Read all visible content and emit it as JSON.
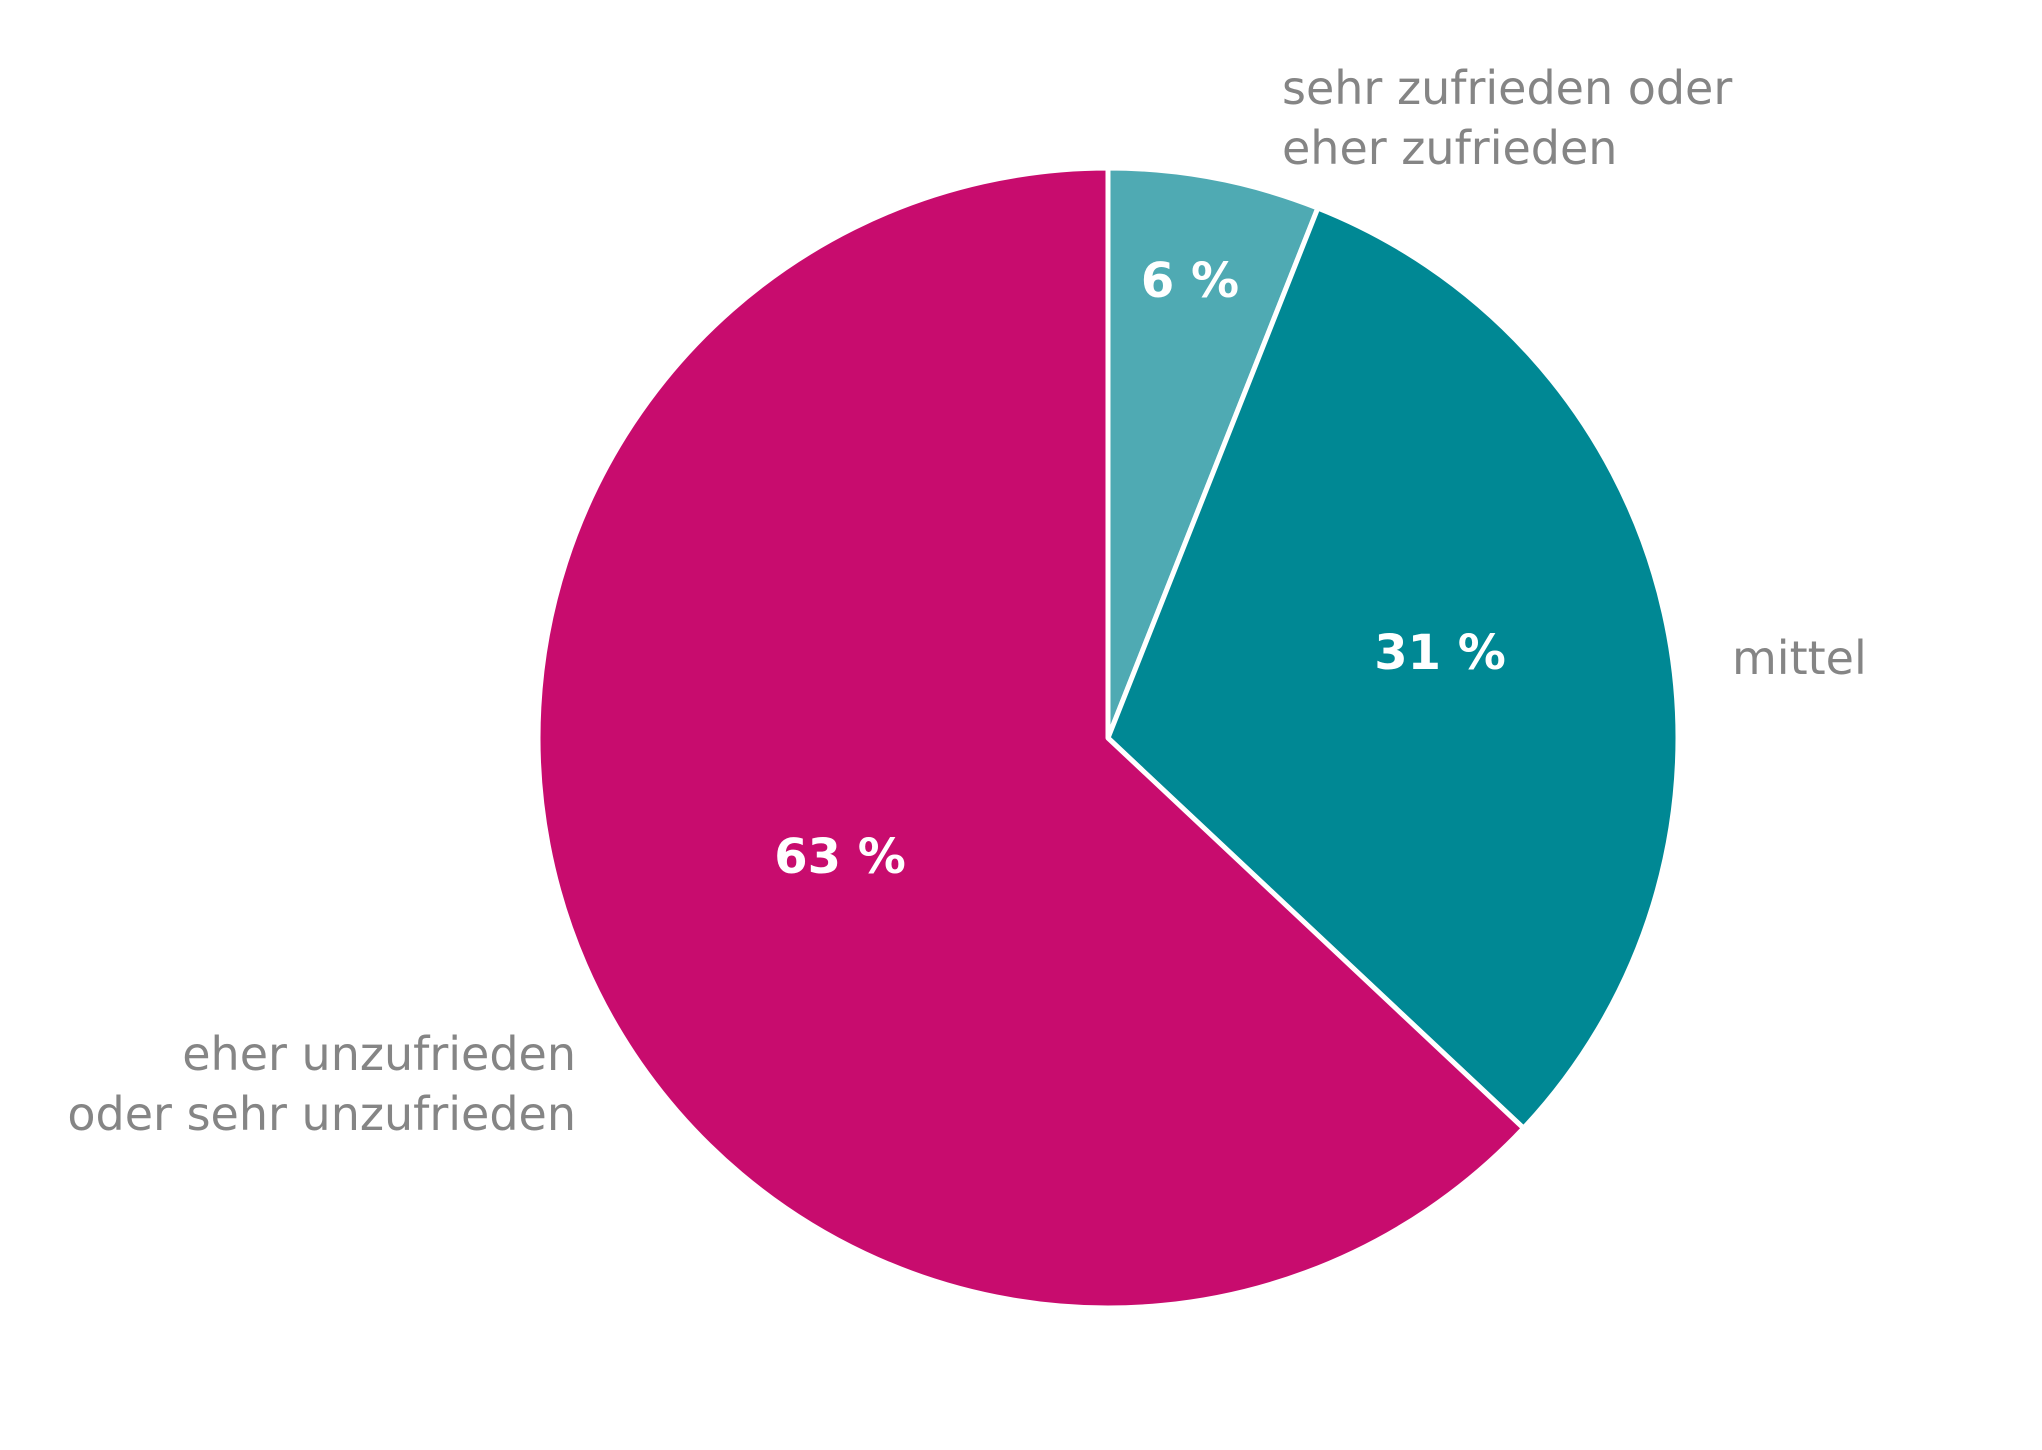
{
  "chart_data": {
    "type": "pie",
    "title": "",
    "start_angle_deg": 0,
    "direction": "clockwise",
    "slice_border_color": "#ffffff",
    "slices": [
      {
        "value": 6,
        "value_label": "6 %",
        "label_lines": [
          "sehr zufrieden oder",
          "eher zufrieden"
        ],
        "color": "#4faab3"
      },
      {
        "value": 31,
        "value_label": "31 %",
        "label_lines": [
          "mittel"
        ],
        "color": "#008894"
      },
      {
        "value": 63,
        "value_label": "63 %",
        "label_lines": [
          "eher unzufrieden",
          "oder sehr unzufrieden"
        ],
        "color": "#c80c6e"
      }
    ]
  }
}
